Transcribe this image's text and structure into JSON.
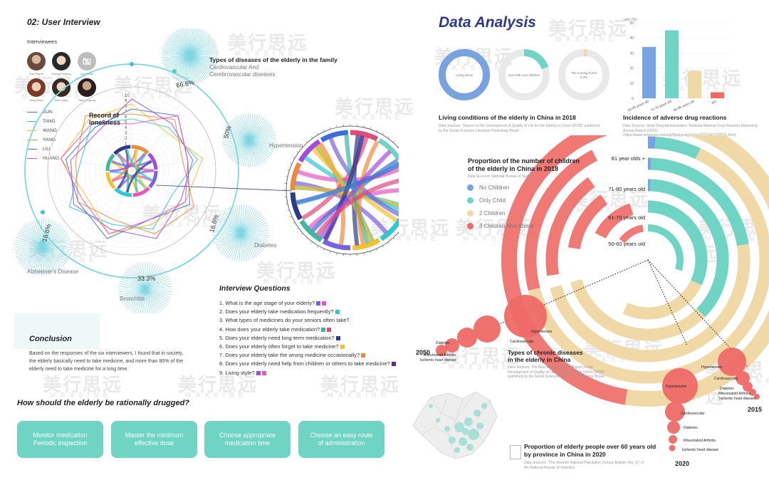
{
  "colors": {
    "teal": "#6fd4c4",
    "blue": "#78a3e0",
    "cream": "#f1d9a7",
    "red": "#ee6a66",
    "dark_blue": "#2d3a8c"
  },
  "watermark": {
    "text": "美行思远",
    "sub": "MAXSINE"
  },
  "left": {
    "title": "02: User Interview",
    "interviewees_label": "Interviewees",
    "avatars": [
      {
        "name": "Sun Rayne"
      },
      {
        "name": "Huang Fenlong"
      },
      {
        "name": "Liu Yuxian"
      },
      {
        "name": "Yang Weiyi"
      },
      {
        "name": "Wan Liang"
      },
      {
        "name": "Tang Kuigong"
      }
    ],
    "interviewees": [
      {
        "name": "SUN",
        "color": "#3a6fd8"
      },
      {
        "name": "TANG",
        "color": "#30c8d0"
      },
      {
        "name": "WANG",
        "color": "#f2c033"
      },
      {
        "name": "YANG",
        "color": "#f08a3a"
      },
      {
        "name": "LIU",
        "color": "#a24be0"
      },
      {
        "name": "HUANG",
        "color": "#e855c2"
      }
    ],
    "loneliness_label": "Record of\nloneliness",
    "axis_numbers": [
      "10",
      "9",
      "8",
      "7",
      "6",
      "5",
      "4",
      "3",
      "2",
      "1"
    ],
    "diseases_title": "Types of diseases of the elderly in the family",
    "disease_items": [
      {
        "label": "Cardiovascular And\nCerebrovascular diseases",
        "percent": "66.6%"
      },
      {
        "label": "Hypertension",
        "percent": "50%"
      },
      {
        "label": "Diabetes",
        "percent": "16.6%"
      },
      {
        "label": "Alzheimer's Disease",
        "percent": "16.6%"
      },
      {
        "label": "Bronchitis",
        "percent": "33.3%"
      }
    ],
    "questions_title": "Interview Questions",
    "questions": [
      {
        "text": "1. What is the age stage of your elderly?",
        "colors": [
          "#7a62e0",
          "#e855c2"
        ]
      },
      {
        "text": "2. Does your elderly take medication frequently?",
        "colors": [
          "#30c8d0"
        ]
      },
      {
        "text": "3. What types of medicines do your seniors often take?",
        "colors": []
      },
      {
        "text": "4. How does your elderly take medication?",
        "colors": [
          "#3ab8a0",
          "#e04a7a"
        ]
      },
      {
        "text": "5. Does your elderly need long-term medication?",
        "colors": [
          "#2d3a8c"
        ]
      },
      {
        "text": "6. Does your elderly often forget to take medicine?",
        "colors": [
          "#f2c033"
        ]
      },
      {
        "text": "7. Does your elderly take the wrong medicine occasionally?",
        "colors": [
          "#f08a3a"
        ]
      },
      {
        "text": "8. Does your elderly need help from children or others to take medicine?",
        "colors": [
          "#5a2d8c"
        ]
      },
      {
        "text": "9. Living style?",
        "colors": [
          "#a24be0",
          "#e855c2"
        ]
      }
    ],
    "conclusion_title": "Conclusion",
    "conclusion_text": "Based on the responses of the six interviewers, I found that in society, the elderly basically need to take medicine, and more than 80% of the elderly need to take medicine for a long time.",
    "drug_title": "How should the elderly be rationally drugged?",
    "buttons": [
      "Monitor medication\nPeriodic inspection",
      "Master the minimum\neffective dose",
      "Choose appropriate\nmedication time",
      "Choose an easy route\nof administration"
    ]
  },
  "right": {
    "title": "Data Analysis",
    "living_title": "Living conditions of the elderly in China in 2018",
    "living_source": "Data Sources: \"Report on the Development of Quality of Life for the Elderly in China (2018)\" published by the Social Sciences Literature Publishing House",
    "living_donuts": [
      {
        "label": "Living alone",
        "value": 100,
        "color": "#78a3e0"
      },
      {
        "label": "Live with your children",
        "value": 20,
        "color": "#6fd4c4"
      },
      {
        "label": "The nursing home\n2.3%",
        "value": 2.3,
        "color": "#f1d9a7"
      }
    ],
    "adverse_title": "Incidence of adverse drug reactions",
    "adverse_source": "Data Sources: State Drug Administration \"National Adverse Drug Reaction Monitoring Annual Report (2020)\" (https://www.nmpa.gov.cn/xxgk/fgwj/gzwj/gzwjyp/20210411150011.html)",
    "adverse_chart": {
      "type": "bar",
      "ylabel": "unit: (%)",
      "ylim": [
        0,
        50
      ],
      "yticks": [
        "50",
        "40",
        "30",
        "20",
        "10",
        "0"
      ],
      "categories": [
        "60-69 years old",
        "70-79 years old",
        "80-89 years old",
        "90+"
      ],
      "values": [
        34,
        45,
        18,
        4
      ],
      "colors": [
        "#78a3e0",
        "#6fd4c4",
        "#f1d9a7",
        "#ee6a66"
      ]
    },
    "children_title": "Proportion of the number of children\nof the elderly in China in 2018",
    "children_source": "Data Sources: National Bureau of Statistics",
    "children_legend": [
      {
        "label": "No Children",
        "color": "#78a3e0"
      },
      {
        "label": "Only Child",
        "color": "#6fd4c4"
      },
      {
        "label": "2 Children",
        "color": "#f1d9a7"
      },
      {
        "label": "3 Children And Above",
        "color": "#ee6a66"
      }
    ],
    "age_rings": [
      {
        "label": "81 year olds +"
      },
      {
        "label": "71-80 years old"
      },
      {
        "label": "61-70 years old"
      },
      {
        "label": "50-60 years old"
      }
    ],
    "chronic_title": "Types of chronic diseases\nin the elderly in China",
    "chronic_source": "Data Sources: The Blue Book on Aging \"Report on the Development of Quality of Life for the Elderly in China (2018)\" published by the Social Sciences Literature Publishing House",
    "years": [
      "2050",
      "2015",
      "2020"
    ],
    "bubble_labels": {
      "2050": [
        "Hypertension",
        "Cardiovascular",
        "Diabetes",
        "Rheumatoid Arthritis",
        "Ischemic heart disease"
      ],
      "2015": [
        "Hypertension",
        "Cardiovascular",
        "Diabetes",
        "Rheumatoid Arthritis",
        "Ischemic heart disease"
      ],
      "2020": [
        "Hypertension",
        "Cardiovascular",
        "Diabetes",
        "Rheumatoid Arthritis",
        "Ischemic heart disease"
      ]
    },
    "map_title": "Proportion of elderly people over 60 years old\nby province in China in 2020",
    "map_source": "Data Sources: \"The Seventh National Population Census Bulletin (No. 5)\" of the National Bureau of Statistics"
  }
}
